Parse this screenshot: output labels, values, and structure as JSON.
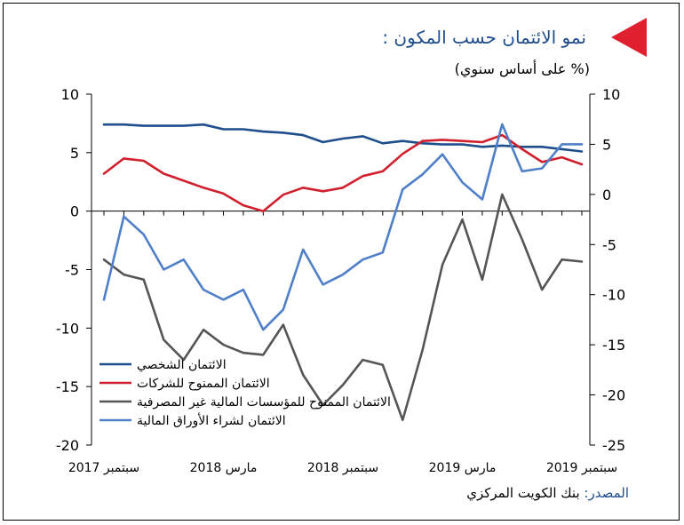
{
  "header": {
    "title": "نمو الائتمان حسب المكون :",
    "subtitle": "(% على أساس سنوي)"
  },
  "footer": {
    "source_label": "المصدر:",
    "source_text": "بنك الكويت المركزي"
  },
  "colors": {
    "title": "#1f4e8c",
    "marker": "#e0202f"
  },
  "chart_data": {
    "type": "line",
    "left_axis": {
      "ylim": [
        -20,
        10
      ],
      "ticks": [
        10,
        5,
        0,
        -5,
        -10,
        -15,
        -20
      ]
    },
    "right_axis": {
      "ylim": [
        -25,
        10
      ],
      "ticks": [
        10,
        5,
        0,
        -5,
        -10,
        -15,
        -20,
        -25
      ]
    },
    "x_tick_labels": [
      "سبتمبر 2017",
      "مارس 2018",
      "سبتمبر 2018",
      "مارس 2019",
      "سبتمبر 2019"
    ],
    "x": [
      "2017-09",
      "2017-10",
      "2017-11",
      "2017-12",
      "2018-01",
      "2018-02",
      "2018-03",
      "2018-04",
      "2018-05",
      "2018-06",
      "2018-07",
      "2018-08",
      "2018-09",
      "2018-10",
      "2018-11",
      "2018-12",
      "2019-01",
      "2019-02",
      "2019-03",
      "2019-04",
      "2019-05",
      "2019-06",
      "2019-07",
      "2019-08",
      "2019-09"
    ],
    "grid": false,
    "legend_position": "bottom-left",
    "series": [
      {
        "name": "الائتمان الشخصي",
        "color": "#1f4e8c",
        "axis": "left",
        "values": [
          7.4,
          7.4,
          7.3,
          7.3,
          7.3,
          7.4,
          7.0,
          7.0,
          6.8,
          6.7,
          6.5,
          5.9,
          6.2,
          6.4,
          5.8,
          6.0,
          5.8,
          5.7,
          5.7,
          5.5,
          5.6,
          5.5,
          5.5,
          5.3,
          5.1
        ]
      },
      {
        "name": "الائتمان الممنوح للشركات",
        "color": "#d0202e",
        "axis": "left",
        "values": [
          3.2,
          4.5,
          4.3,
          3.2,
          2.6,
          2.0,
          1.5,
          0.5,
          0.0,
          1.4,
          2.0,
          1.7,
          2.0,
          3.0,
          3.4,
          4.9,
          6.0,
          6.1,
          6.0,
          5.9,
          6.5,
          5.3,
          4.2,
          4.6,
          4.0
        ]
      },
      {
        "name": "الائتمان الممنوح للمؤسسات المالية غير المصرفية",
        "color": "#555555",
        "axis": "right",
        "values": [
          -6.5,
          -8.0,
          -8.5,
          -14.5,
          -16.5,
          -13.5,
          -15.0,
          -15.8,
          -16.0,
          -13.0,
          -18.0,
          -21.0,
          -19.0,
          -16.5,
          -17.0,
          -22.5,
          -15.5,
          -7.0,
          -2.5,
          -8.5,
          0.0,
          -4.5,
          -9.5,
          -6.5,
          -6.7
        ]
      },
      {
        "name": "الائتمان لشراء الأوراق المالية",
        "color": "#4f7fc8",
        "axis": "right",
        "values": [
          -10.5,
          -2.2,
          -4.0,
          -7.5,
          -6.5,
          -9.5,
          -10.5,
          -9.5,
          -13.5,
          -11.5,
          -5.5,
          -9.0,
          -8.0,
          -6.5,
          -5.8,
          0.5,
          2.0,
          4.0,
          1.2,
          -0.5,
          7.0,
          2.3,
          2.6,
          5.0,
          5.0
        ]
      }
    ]
  }
}
